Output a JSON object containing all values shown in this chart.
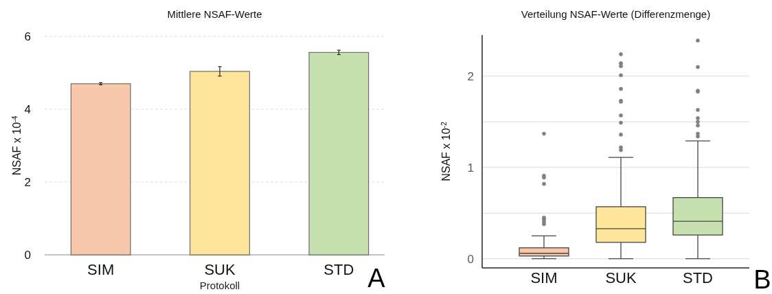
{
  "chart_data": [
    {
      "type": "bar",
      "title": "Mittlere NSAF-Werte",
      "xlabel": "Protokoll",
      "ylabel": "NSAF x 10$^{-4}$",
      "categories": [
        "SIM",
        "SUK",
        "STD"
      ],
      "values": [
        4.7,
        5.04,
        5.56
      ],
      "errors": [
        0.03,
        0.13,
        0.06
      ],
      "colors": [
        "#f7c9aa",
        "#fde59a",
        "#c6e0b0"
      ],
      "ylim": [
        0,
        6
      ],
      "yticks": [
        0,
        2,
        4,
        6
      ],
      "grid": "y",
      "annotations": [
        "A"
      ]
    },
    {
      "type": "box",
      "title": "Verteilung NSAF-Werte (Differenzmenge)",
      "ylabel": "NSAF x 10$^{-2}$",
      "categories": [
        "SIM",
        "SUK",
        "STD"
      ],
      "colors": [
        "#f7c9aa",
        "#fde59a",
        "#c6e0b0"
      ],
      "ylim": [
        -0.1,
        2.45
      ],
      "yticks": [
        0,
        {
          "value": 0.5,
          "label": null
        },
        1,
        {
          "value": 1.5,
          "label": null
        },
        2
      ],
      "grid": "y",
      "annotations": [
        "B"
      ],
      "boxes": [
        {
          "low": 0,
          "q1": 0.03,
          "median": 0.06,
          "q3": 0.12,
          "high": 0.25,
          "outliers": [
            0.38,
            0.4,
            0.42,
            0.44,
            0.45,
            0.82,
            0.89,
            0.91,
            1.37
          ]
        },
        {
          "low": 0,
          "q1": 0.18,
          "median": 0.33,
          "q3": 0.57,
          "high": 1.11,
          "outliers": [
            1.19,
            1.22,
            1.36,
            1.49,
            1.57,
            1.72,
            1.73,
            1.86,
            2.01,
            2.11,
            2.14,
            2.24
          ]
        },
        {
          "low": 0,
          "q1": 0.26,
          "median": 0.41,
          "q3": 0.67,
          "high": 1.29,
          "outliers": [
            1.34,
            1.37,
            1.46,
            1.5,
            1.54,
            1.63,
            1.83,
            1.84,
            2.1,
            2.39
          ]
        }
      ]
    }
  ]
}
